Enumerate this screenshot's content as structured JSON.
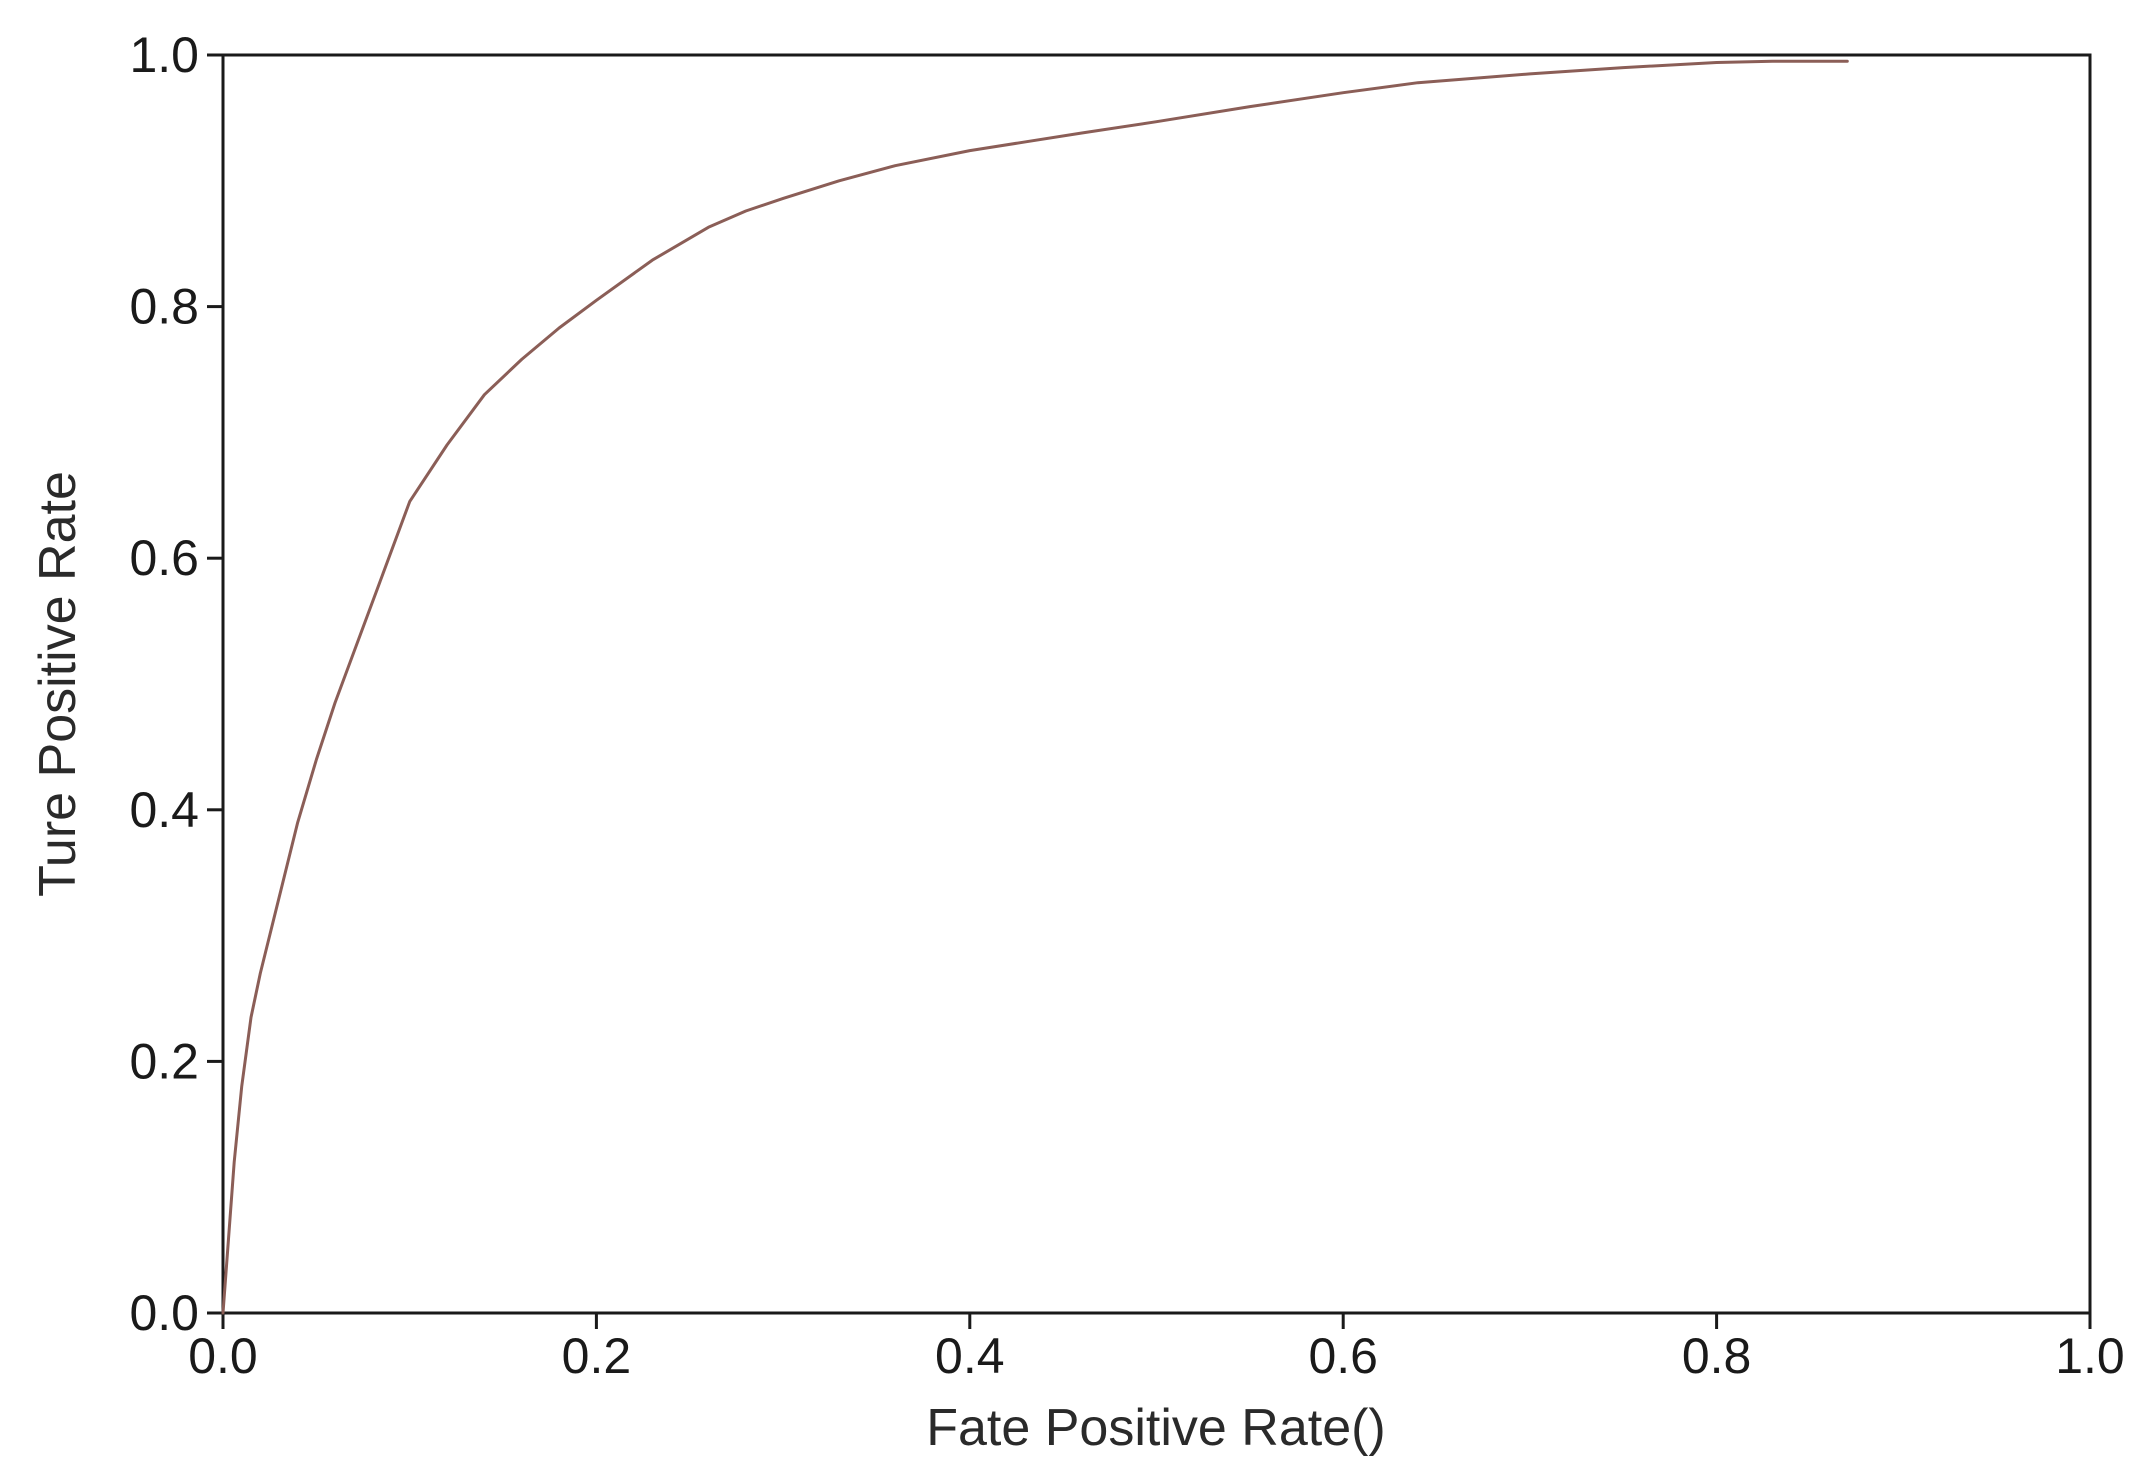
{
  "chart_data": {
    "type": "line",
    "title": "",
    "xlabel": "Fate Positive Rate()",
    "ylabel": "Ture Positive Rate",
    "xlim": [
      0.0,
      1.0
    ],
    "ylim": [
      0.0,
      1.0
    ],
    "x_ticks": [
      0.0,
      0.2,
      0.4,
      0.6,
      0.8,
      1.0
    ],
    "y_ticks": [
      0.0,
      0.2,
      0.4,
      0.6,
      0.8,
      1.0
    ],
    "x_tick_labels": [
      "0.0",
      "0.2",
      "0.4",
      "0.6",
      "0.8",
      "1.0"
    ],
    "y_tick_labels": [
      "0.0",
      "0.2",
      "0.4",
      "0.6",
      "0.8",
      "1.0"
    ],
    "grid": false,
    "legend": "none",
    "line_color": "#8b5e57",
    "series": [
      {
        "x": [
          0.0,
          0.003,
          0.006,
          0.01,
          0.015,
          0.02,
          0.03,
          0.04,
          0.05,
          0.06,
          0.07,
          0.085,
          0.1,
          0.12,
          0.14,
          0.16,
          0.18,
          0.2,
          0.23,
          0.26,
          0.28,
          0.3,
          0.33,
          0.36,
          0.4,
          0.43,
          0.46,
          0.5,
          0.55,
          0.6,
          0.64,
          0.7,
          0.75,
          0.8,
          0.83,
          0.87
        ],
        "y": [
          0.0,
          0.06,
          0.12,
          0.18,
          0.235,
          0.27,
          0.33,
          0.39,
          0.44,
          0.485,
          0.525,
          0.585,
          0.645,
          0.69,
          0.73,
          0.758,
          0.783,
          0.805,
          0.837,
          0.863,
          0.876,
          0.886,
          0.9,
          0.912,
          0.924,
          0.931,
          0.938,
          0.947,
          0.959,
          0.97,
          0.978,
          0.985,
          0.99,
          0.994,
          0.995,
          0.995
        ]
      }
    ]
  }
}
